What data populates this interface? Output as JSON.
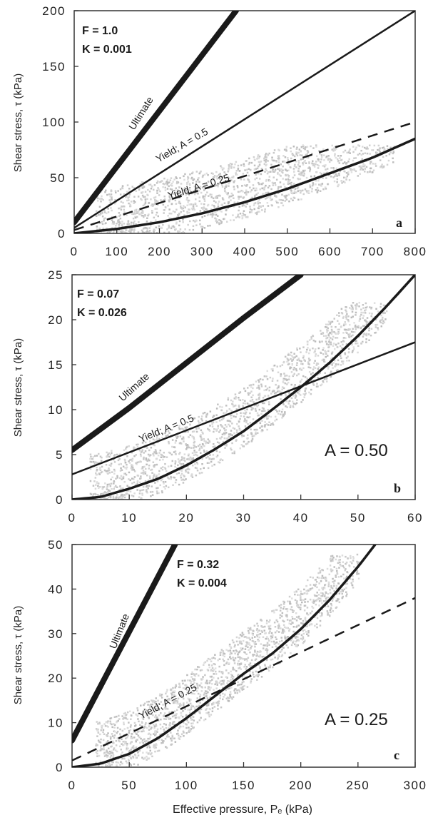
{
  "chart_data": [
    {
      "type": "line",
      "panel": "a",
      "xlabel": "",
      "ylabel": "Shear stress, τ (kPa)",
      "xlim": [
        0,
        800
      ],
      "ylim": [
        0,
        200
      ],
      "xticks": [
        0,
        100,
        200,
        300,
        400,
        500,
        600,
        700,
        800
      ],
      "yticks": [
        0,
        50,
        100,
        150,
        200
      ],
      "annotations": [
        "F = 1.0",
        "K = 0.001"
      ],
      "series": [
        {
          "name": "Ultimate",
          "style": "thick",
          "x": [
            0,
            380
          ],
          "y": [
            10,
            200
          ]
        },
        {
          "name": "Yield; A = 0.5",
          "style": "solid",
          "x": [
            0,
            800
          ],
          "y": [
            5,
            200
          ]
        },
        {
          "name": "Yield; A = 0.25",
          "style": "dashed",
          "x": [
            0,
            800
          ],
          "y": [
            3,
            100
          ]
        },
        {
          "name": "Fit curve",
          "style": "curve",
          "x": [
            0,
            100,
            200,
            300,
            400,
            500,
            600,
            700,
            800
          ],
          "y": [
            0,
            4,
            10,
            18,
            28,
            40,
            54,
            68,
            85
          ]
        },
        {
          "name": "Observations",
          "style": "scatter-cloud",
          "x_range": [
            50,
            750
          ],
          "y_range": [
            0,
            80
          ]
        }
      ]
    },
    {
      "type": "line",
      "panel": "b",
      "xlabel": "",
      "ylabel": "Shear stress, τ (kPa)",
      "xlim": [
        0,
        60
      ],
      "ylim": [
        0,
        25
      ],
      "xticks": [
        0,
        10,
        20,
        30,
        40,
        50,
        60
      ],
      "yticks": [
        0,
        5,
        10,
        15,
        20,
        25
      ],
      "annotations": [
        "F = 0.07",
        "K = 0.026",
        "A = 0.50"
      ],
      "series": [
        {
          "name": "Ultimate",
          "style": "thick",
          "x": [
            0,
            10,
            20,
            30,
            40
          ],
          "y": [
            5.5,
            10.2,
            15.2,
            20.2,
            25
          ]
        },
        {
          "name": "Yield; A = 0.5",
          "style": "solid",
          "x": [
            0,
            60
          ],
          "y": [
            2.8,
            17.5
          ]
        },
        {
          "name": "Fit curve",
          "style": "curve",
          "x": [
            0,
            5,
            10,
            15,
            20,
            25,
            30,
            35,
            40,
            45,
            50,
            55,
            60
          ],
          "y": [
            0,
            0.3,
            1.2,
            2.3,
            3.8,
            5.6,
            7.6,
            10,
            12.5,
            15.2,
            18.2,
            21.5,
            25
          ]
        },
        {
          "name": "Observations",
          "style": "scatter-cloud",
          "x_range": [
            3,
            55
          ],
          "y_range": [
            0,
            22
          ]
        }
      ]
    },
    {
      "type": "line",
      "panel": "c",
      "xlabel": "Effective pressure, Pₑ (kPa)",
      "ylabel": "Shear stress, τ (kPa)",
      "xlim": [
        0,
        300
      ],
      "ylim": [
        0,
        50
      ],
      "xticks": [
        0,
        50,
        100,
        150,
        200,
        250,
        300
      ],
      "yticks": [
        0,
        10,
        20,
        30,
        40,
        50
      ],
      "annotations": [
        "F = 0.32",
        "K = 0.004",
        "A = 0.25"
      ],
      "series": [
        {
          "name": "Ultimate",
          "style": "thick",
          "x": [
            0,
            90
          ],
          "y": [
            6,
            50
          ]
        },
        {
          "name": "Yield; A = 0.25",
          "style": "dashed",
          "x": [
            0,
            300
          ],
          "y": [
            1.5,
            38
          ]
        },
        {
          "name": "Fit curve",
          "style": "curve",
          "x": [
            0,
            25,
            50,
            75,
            100,
            125,
            150,
            175,
            200,
            225,
            250,
            265
          ],
          "y": [
            0,
            0.8,
            3,
            6.5,
            11,
            16,
            21,
            25.5,
            31,
            37.5,
            45,
            50
          ]
        },
        {
          "name": "Observations",
          "style": "scatter-cloud",
          "x_range": [
            20,
            250
          ],
          "y_range": [
            0,
            48
          ]
        }
      ]
    }
  ],
  "labels": {
    "panel_a": {
      "letter": "a",
      "param_f": "F = 1.0",
      "param_k": "K = 0.001",
      "ultimate": "Ultimate",
      "yield_05": "Yield; A = 0.5",
      "yield_025": "Yield; A = 0.25"
    },
    "panel_b": {
      "letter": "b",
      "param_f": "F = 0.07",
      "param_k": "K = 0.026",
      "big_a": "A = 0.50",
      "ultimate": "Ultimate",
      "yield_05": "Yield; A = 0.5"
    },
    "panel_c": {
      "letter": "c",
      "param_f": "F = 0.32",
      "param_k": "K = 0.004",
      "big_a": "A = 0.25",
      "ultimate": "Ultimate",
      "yield_025": "Yield; A = 0.25"
    },
    "ylabel": "Shear stress, τ (kPa)",
    "xlabel": "Effective pressure, Pₑ (kPa)"
  }
}
